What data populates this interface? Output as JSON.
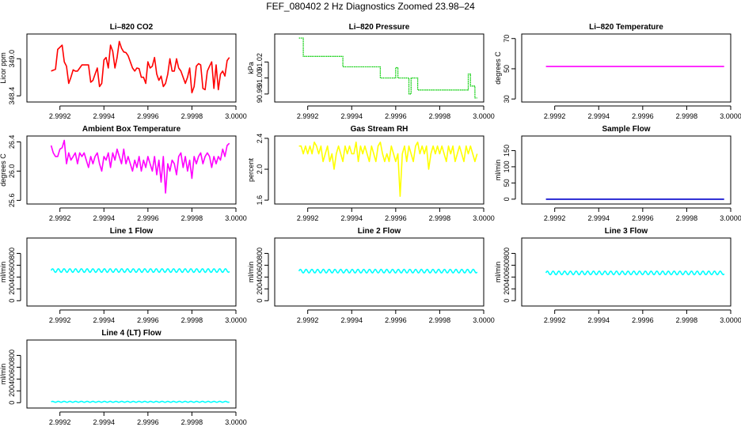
{
  "title": "FEF_080402  2 Hz Diagnostics Zoomed 23.98–24",
  "charts": [
    {
      "title": "Li–820 CO2",
      "ylabel": "Licor ppm",
      "color": "#ff0000",
      "ylim": [
        348.3,
        349.4
      ],
      "yticks": [
        348.4,
        349.0
      ],
      "ytick_labels": [
        "348.4",
        "349.0"
      ],
      "xlim": [
        2.99905,
        3.0
      ],
      "xticks": [
        2.9992,
        2.9994,
        2.9996,
        2.9998,
        3.0
      ],
      "xtick_labels": [
        "2.9992",
        "2.9994",
        "2.9996",
        "2.9998",
        "3.0000"
      ],
      "x": [
        2.99916,
        2.99918,
        2.99919,
        2.99921,
        2.99922,
        2.99923,
        2.99924,
        2.99925,
        2.99926,
        2.99927,
        2.99928,
        2.99929,
        2.9993,
        2.99932,
        2.99933,
        2.99934,
        2.99935,
        2.99936,
        2.99937,
        2.99938,
        2.99939,
        2.9994,
        2.99941,
        2.99942,
        2.99943,
        2.99944,
        2.99945,
        2.99946,
        2.99947,
        2.99948,
        2.99949,
        2.9995,
        2.99951,
        2.99952,
        2.99953,
        2.99954,
        2.99955,
        2.99956,
        2.99957,
        2.99958,
        2.99959,
        2.9996,
        2.99961,
        2.99962,
        2.99963,
        2.99964,
        2.99965,
        2.99966,
        2.99967,
        2.99968,
        2.99969,
        2.9997,
        2.99971,
        2.99972,
        2.99973,
        2.99974,
        2.99975,
        2.99976,
        2.99977,
        2.99978,
        2.99979,
        2.9998,
        2.99981,
        2.99982,
        2.99983,
        2.99984,
        2.99985,
        2.99986,
        2.99987,
        2.99988,
        2.99989,
        2.9999,
        2.99991,
        2.99992,
        2.99993,
        2.99994,
        2.99995,
        2.99996,
        2.99997
      ],
      "values": [
        348.8,
        348.83,
        349.15,
        349.22,
        348.95,
        348.88,
        348.6,
        348.7,
        348.82,
        348.8,
        348.8,
        348.85,
        348.9,
        348.9,
        348.9,
        348.62,
        348.65,
        348.75,
        348.85,
        348.55,
        348.6,
        348.98,
        349.02,
        348.85,
        349.22,
        349.12,
        348.85,
        349.02,
        349.28,
        349.17,
        349.11,
        349.1,
        349.05,
        348.95,
        348.85,
        348.8,
        348.85,
        348.84,
        348.7,
        348.7,
        348.6,
        348.95,
        348.85,
        348.88,
        349.02,
        348.75,
        348.65,
        348.72,
        348.55,
        348.6,
        348.75,
        349.0,
        348.8,
        348.8,
        349.0,
        348.85,
        348.8,
        348.7,
        348.6,
        348.7,
        348.85,
        348.45,
        348.55,
        348.88,
        348.92,
        348.9,
        348.52,
        348.5,
        348.8,
        348.88,
        348.95,
        348.52,
        348.9,
        348.5,
        348.75,
        348.8,
        348.72,
        348.97,
        349.02
      ]
    },
    {
      "title": "Li–820 Pressure",
      "ylabel": "kPa",
      "color": "#00cc00",
      "dotted": true,
      "ylim": [
        90.97,
        91.055
      ],
      "yticks": [
        90.98,
        91.0,
        91.02
      ],
      "ytick_labels": [
        "90.98",
        "91.00",
        "91.02"
      ],
      "xlim": [
        2.99905,
        3.0
      ],
      "xticks": [
        2.9992,
        2.9994,
        2.9996,
        2.9998,
        3.0
      ],
      "xtick_labels": [
        "2.9992",
        "2.9994",
        "2.9996",
        "2.9998",
        "3.0000"
      ],
      "x": [
        2.99916,
        2.99918,
        2.99935,
        2.99936,
        2.99952,
        2.99953,
        2.99959,
        2.9996,
        2.99961,
        2.99962,
        2.99965,
        2.99966,
        2.99967,
        2.99968,
        2.99969,
        2.9997,
        2.99971,
        2.99972,
        2.99992,
        2.99993,
        2.99994,
        2.99995,
        2.99996,
        2.99997
      ],
      "values": [
        91.05,
        91.027,
        91.027,
        91.014,
        91.014,
        91.0,
        91.0,
        91.013,
        91.0,
        91.0,
        91.0,
        90.98,
        91.0,
        91.0,
        91.0,
        90.985,
        90.985,
        90.985,
        90.985,
        91.005,
        90.99,
        90.99,
        90.975,
        90.975
      ]
    },
    {
      "title": "Li–820 Temperature",
      "ylabel": "degrees C",
      "color": "#ff00ff",
      "ylim": [
        28,
        73
      ],
      "yticks": [
        30,
        50,
        70
      ],
      "ytick_labels": [
        "30",
        "50",
        "70"
      ],
      "xlim": [
        2.99905,
        3.0
      ],
      "xticks": [
        2.9992,
        2.9994,
        2.9996,
        2.9998,
        3.0
      ],
      "xtick_labels": [
        "2.9992",
        "2.9994",
        "2.9996",
        "2.9998",
        "3.0000"
      ],
      "x": [
        2.99916,
        2.99997
      ],
      "values": [
        51.5,
        51.5
      ]
    },
    {
      "title": "Ambient Box Temperature",
      "ylabel": "degrees C",
      "color": "#ff00ff",
      "ylim": [
        25.55,
        26.48
      ],
      "yticks": [
        25.6,
        26.0,
        26.4
      ],
      "ytick_labels": [
        "25.6",
        "26.0",
        "26.4"
      ],
      "xlim": [
        2.99905,
        3.0
      ],
      "xticks": [
        2.9992,
        2.9994,
        2.9996,
        2.9998,
        3.0
      ],
      "xtick_labels": [
        "2.9992",
        "2.9994",
        "2.9996",
        "2.9998",
        "3.0000"
      ],
      "x": [
        2.99916,
        2.99917,
        2.99918,
        2.99919,
        2.9992,
        2.99921,
        2.99922,
        2.99923,
        2.99924,
        2.99925,
        2.99926,
        2.99927,
        2.99928,
        2.99929,
        2.9993,
        2.99931,
        2.99932,
        2.99933,
        2.99934,
        2.99935,
        2.99936,
        2.99937,
        2.99938,
        2.99939,
        2.9994,
        2.99941,
        2.99942,
        2.99943,
        2.99944,
        2.99945,
        2.99946,
        2.99947,
        2.99948,
        2.99949,
        2.9995,
        2.99951,
        2.99952,
        2.99953,
        2.99954,
        2.99955,
        2.99956,
        2.99957,
        2.99958,
        2.99959,
        2.9996,
        2.99961,
        2.99962,
        2.99963,
        2.99964,
        2.99965,
        2.99966,
        2.99967,
        2.99968,
        2.99969,
        2.9997,
        2.99971,
        2.99972,
        2.99973,
        2.99974,
        2.99975,
        2.99976,
        2.99977,
        2.99978,
        2.99979,
        2.9998,
        2.99981,
        2.99982,
        2.99983,
        2.99984,
        2.99985,
        2.99986,
        2.99987,
        2.99988,
        2.99989,
        2.9999,
        2.99991,
        2.99992,
        2.99993,
        2.99994,
        2.99995,
        2.99996,
        2.99997
      ],
      "values": [
        26.35,
        26.25,
        26.2,
        26.2,
        26.3,
        26.32,
        26.42,
        26.1,
        26.25,
        26.15,
        26.2,
        26.25,
        26.1,
        26.25,
        26.2,
        26.25,
        26.15,
        26.05,
        26.2,
        26.1,
        26.2,
        26.25,
        26.1,
        26.0,
        26.2,
        26.15,
        26.25,
        26.05,
        26.25,
        26.15,
        26.3,
        26.2,
        26.1,
        26.3,
        26.1,
        26.2,
        26.1,
        26.0,
        26.15,
        26.05,
        26.2,
        26.0,
        26.15,
        26.05,
        26.2,
        26.1,
        26.0,
        26.2,
        25.95,
        26.15,
        25.85,
        26.2,
        25.7,
        26.1,
        26.0,
        26.15,
        26.1,
        25.95,
        26.2,
        26.25,
        26.05,
        26.2,
        26.0,
        26.15,
        25.9,
        26.2,
        26.1,
        26.2,
        26.25,
        26.1,
        26.2,
        26.25,
        26.2,
        26.05,
        26.2,
        26.1,
        26.2,
        26.15,
        26.3,
        26.2,
        26.35,
        26.38
      ]
    },
    {
      "title": "Gas Stream RH",
      "ylabel": "percent",
      "color": "#ffff00",
      "ylim": [
        1.55,
        2.43
      ],
      "yticks": [
        1.6,
        2.0,
        2.4
      ],
      "ytick_labels": [
        "1.6",
        "2.0",
        "2.4"
      ],
      "xlim": [
        2.99905,
        3.0
      ],
      "xticks": [
        2.9992,
        2.9994,
        2.9996,
        2.9998,
        3.0
      ],
      "xtick_labels": [
        "2.9992",
        "2.9994",
        "2.9996",
        "2.9998",
        "3.0000"
      ],
      "x": [
        2.99916,
        2.99917,
        2.99918,
        2.99919,
        2.9992,
        2.99921,
        2.99922,
        2.99923,
        2.99924,
        2.99925,
        2.99926,
        2.99927,
        2.99928,
        2.99929,
        2.9993,
        2.99931,
        2.99932,
        2.99933,
        2.99934,
        2.99935,
        2.99936,
        2.99937,
        2.99938,
        2.99939,
        2.9994,
        2.99941,
        2.99942,
        2.99943,
        2.99944,
        2.99945,
        2.99946,
        2.99947,
        2.99948,
        2.99949,
        2.9995,
        2.99951,
        2.99952,
        2.99953,
        2.99954,
        2.99955,
        2.99956,
        2.99957,
        2.99958,
        2.99959,
        2.9996,
        2.99961,
        2.99962,
        2.99963,
        2.99964,
        2.99965,
        2.99966,
        2.99967,
        2.99968,
        2.99969,
        2.9997,
        2.99971,
        2.99972,
        2.99973,
        2.99974,
        2.99975,
        2.99976,
        2.99977,
        2.99978,
        2.99979,
        2.9998,
        2.99981,
        2.99982,
        2.99983,
        2.99984,
        2.99985,
        2.99986,
        2.99987,
        2.99988,
        2.99989,
        2.9999,
        2.99991,
        2.99992,
        2.99993,
        2.99994,
        2.99995,
        2.99996,
        2.99997
      ],
      "values": [
        2.3,
        2.3,
        2.2,
        2.3,
        2.2,
        2.3,
        2.2,
        2.35,
        2.3,
        2.2,
        2.3,
        2.1,
        2.2,
        2.3,
        2.1,
        2.2,
        2.0,
        2.2,
        2.3,
        2.2,
        2.1,
        2.3,
        2.2,
        2.3,
        2.2,
        2.2,
        2.35,
        2.1,
        2.3,
        2.2,
        2.3,
        2.2,
        2.1,
        2.3,
        2.2,
        2.1,
        2.3,
        2.35,
        2.2,
        2.1,
        2.2,
        2.1,
        2.3,
        2.2,
        2.1,
        2.2,
        1.65,
        2.2,
        2.3,
        2.1,
        2.3,
        2.2,
        2.1,
        2.3,
        2.35,
        2.2,
        2.3,
        2.2,
        2.3,
        2.0,
        2.2,
        2.3,
        2.2,
        2.3,
        2.2,
        2.3,
        2.2,
        2.1,
        2.3,
        2.2,
        2.3,
        2.1,
        2.2,
        2.3,
        2.2,
        2.1,
        2.3,
        2.2,
        2.3,
        2.2,
        2.1,
        2.2
      ]
    },
    {
      "title": "Sample Flow",
      "ylabel": "ml/min",
      "color": "#0000cc",
      "ylim": [
        -15,
        195
      ],
      "yticks": [
        0,
        50,
        100,
        150
      ],
      "ytick_labels": [
        "0",
        "50",
        "100",
        "150"
      ],
      "xlim": [
        2.99905,
        3.0
      ],
      "xticks": [
        2.9992,
        2.9994,
        2.9996,
        2.9998,
        3.0
      ],
      "xtick_labels": [
        "2.9992",
        "2.9994",
        "2.9996",
        "2.9998",
        "3.0000"
      ],
      "x": [
        2.99916,
        2.99997
      ],
      "values": [
        0,
        0
      ]
    },
    {
      "title": "Line 1 Flow",
      "ylabel": "ml/min",
      "color": "#00ffff",
      "wave": {
        "center": 510,
        "amp": 30,
        "period": 2.62e-05
      },
      "ylim": [
        -90,
        1060
      ],
      "yticks": [
        0,
        200,
        400,
        600,
        800
      ],
      "ytick_labels": [
        "0",
        "200",
        "400",
        "600",
        "800"
      ],
      "xlim": [
        2.99905,
        3.0
      ],
      "xticks": [
        2.9992,
        2.9994,
        2.9996,
        2.9998,
        3.0
      ],
      "xtick_labels": [
        "2.9992",
        "2.9994",
        "2.9996",
        "2.9998",
        "3.0000"
      ],
      "x": [
        2.99916,
        2.99997
      ]
    },
    {
      "title": "Line 2 Flow",
      "ylabel": "ml/min",
      "color": "#00ffff",
      "wave": {
        "center": 500,
        "amp": 30,
        "period": 2.62e-05
      },
      "ylim": [
        -90,
        1060
      ],
      "yticks": [
        0,
        200,
        400,
        600,
        800
      ],
      "ytick_labels": [
        "0",
        "200",
        "400",
        "600",
        "800"
      ],
      "xlim": [
        2.99905,
        3.0
      ],
      "xticks": [
        2.9992,
        2.9994,
        2.9996,
        2.9998,
        3.0
      ],
      "xtick_labels": [
        "2.9992",
        "2.9994",
        "2.9996",
        "2.9998",
        "3.0000"
      ],
      "x": [
        2.99916,
        2.99997
      ]
    },
    {
      "title": "Line 3 Flow",
      "ylabel": "ml/min",
      "color": "#00ffff",
      "wave": {
        "center": 470,
        "amp": 30,
        "period": 2.62e-05
      },
      "ylim": [
        -90,
        1060
      ],
      "yticks": [
        0,
        200,
        400,
        600,
        800
      ],
      "ytick_labels": [
        "0",
        "200",
        "400",
        "600",
        "800"
      ],
      "xlim": [
        2.99905,
        3.0
      ],
      "xticks": [
        2.9992,
        2.9994,
        2.9996,
        2.9998,
        3.0
      ],
      "xtick_labels": [
        "2.9992",
        "2.9994",
        "2.9996",
        "2.9998",
        "3.0000"
      ],
      "x": [
        2.99916,
        2.99997
      ]
    },
    {
      "title": "Line 4 (LT) Flow",
      "ylabel": "ml/min",
      "color": "#00ffff",
      "wave": {
        "center": 15,
        "amp": 8,
        "period": 2.62e-05
      },
      "ylim": [
        -90,
        1060
      ],
      "yticks": [
        0,
        200,
        400,
        600,
        800
      ],
      "ytick_labels": [
        "0",
        "200",
        "400",
        "600",
        "800"
      ],
      "xlim": [
        2.99905,
        3.0
      ],
      "xticks": [
        2.9992,
        2.9994,
        2.9996,
        2.9998,
        3.0
      ],
      "xtick_labels": [
        "2.9992",
        "2.9994",
        "2.9996",
        "2.9998",
        "3.0000"
      ],
      "x": [
        2.99916,
        2.99997
      ]
    }
  ]
}
